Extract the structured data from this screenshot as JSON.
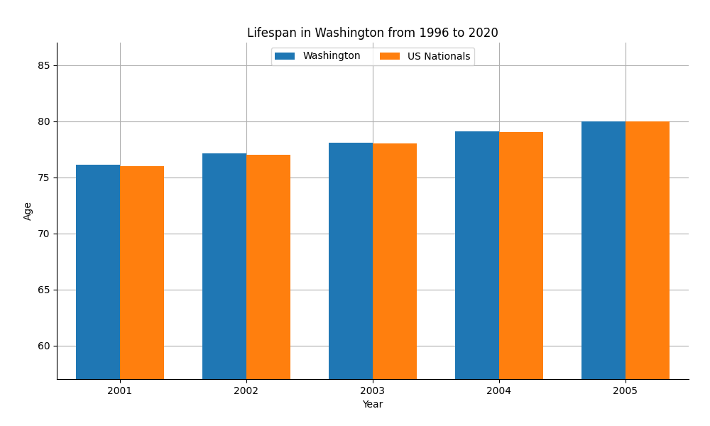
{
  "chart_data": {
    "type": "bar",
    "title": "Lifespan in Washington from 1996 to 2020",
    "x_label": "Year",
    "y_label": "Age",
    "categories": [
      "2001",
      "2002",
      "2003",
      "2004",
      "2005"
    ],
    "series": [
      {
        "name": "Washington",
        "values": [
          76.1,
          77.1,
          78.1,
          79.1,
          80.0
        ]
      },
      {
        "name": "US Nationals",
        "values": [
          76.0,
          77.0,
          78.0,
          79.0,
          80.0
        ]
      }
    ],
    "ylim": [
      57,
      87
    ],
    "yticks": [
      60,
      65,
      70,
      75,
      80,
      85
    ],
    "grid": true,
    "legend": "upper center"
  }
}
